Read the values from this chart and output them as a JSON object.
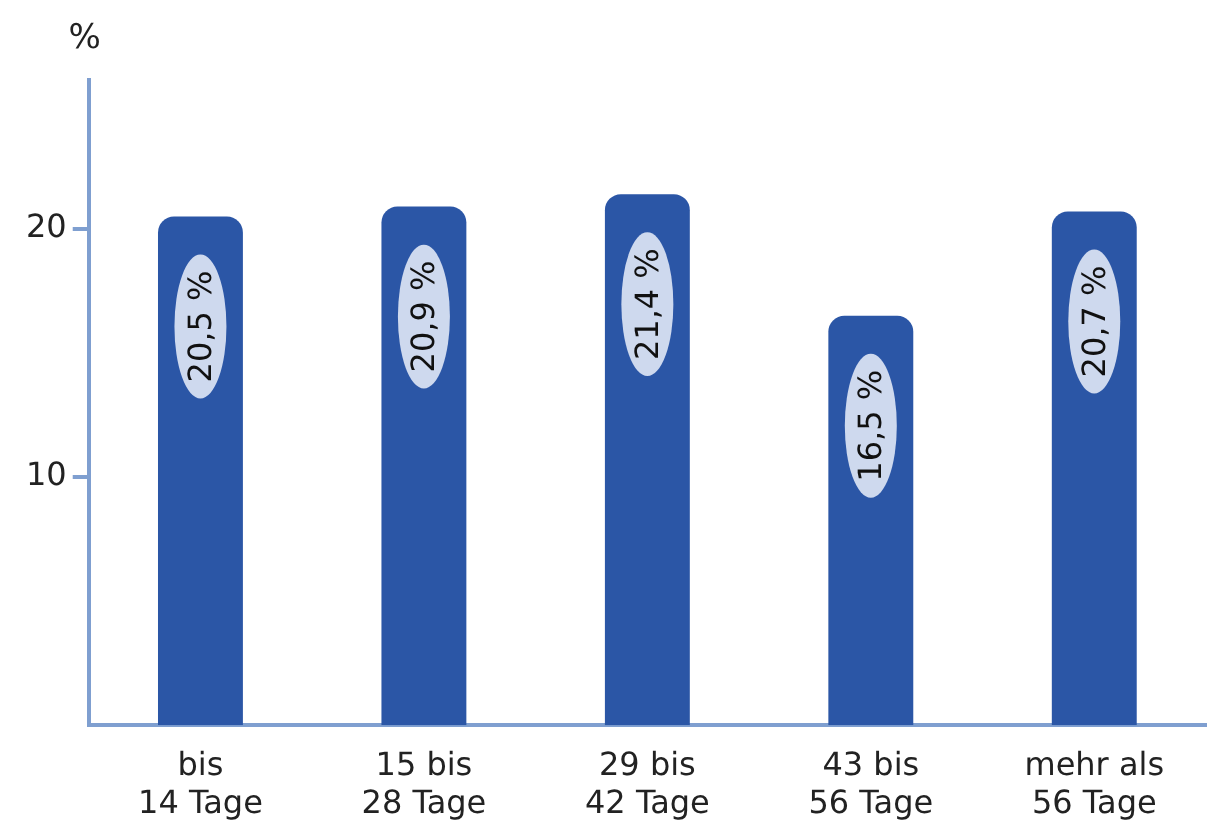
{
  "chart_data": {
    "type": "bar",
    "ylabel": "%",
    "categories": [
      "bis 14 Tage",
      "15 bis 28 Tage",
      "29 bis 42 Tage",
      "43 bis 56 Tage",
      "mehr als 56 Tage"
    ],
    "values": [
      20.5,
      20.9,
      21.4,
      16.5,
      20.7
    ],
    "value_labels": [
      "20,5 %",
      "20,9 %",
      "21,4 %",
      "16,5 %",
      "20,7 %"
    ],
    "color": "#2b56a6",
    "ylim": [
      0,
      26
    ],
    "yticks": [
      10,
      20
    ],
    "legend": false
  }
}
